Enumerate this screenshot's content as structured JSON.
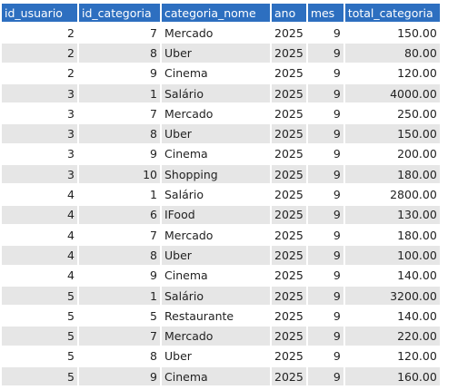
{
  "table": {
    "columns": [
      "id_usuario",
      "id_categoria",
      "categoria_nome",
      "ano",
      "mes",
      "total_categoria"
    ],
    "rows": [
      [
        "2",
        "7",
        "Mercado",
        "2025",
        "9",
        "150.00"
      ],
      [
        "2",
        "8",
        "Uber",
        "2025",
        "9",
        "80.00"
      ],
      [
        "2",
        "9",
        "Cinema",
        "2025",
        "9",
        "120.00"
      ],
      [
        "3",
        "1",
        "Salário",
        "2025",
        "9",
        "4000.00"
      ],
      [
        "3",
        "7",
        "Mercado",
        "2025",
        "9",
        "250.00"
      ],
      [
        "3",
        "8",
        "Uber",
        "2025",
        "9",
        "150.00"
      ],
      [
        "3",
        "9",
        "Cinema",
        "2025",
        "9",
        "200.00"
      ],
      [
        "3",
        "10",
        "Shopping",
        "2025",
        "9",
        "180.00"
      ],
      [
        "4",
        "1",
        "Salário",
        "2025",
        "9",
        "2800.00"
      ],
      [
        "4",
        "6",
        "IFood",
        "2025",
        "9",
        "130.00"
      ],
      [
        "4",
        "7",
        "Mercado",
        "2025",
        "9",
        "180.00"
      ],
      [
        "4",
        "8",
        "Uber",
        "2025",
        "9",
        "100.00"
      ],
      [
        "4",
        "9",
        "Cinema",
        "2025",
        "9",
        "140.00"
      ],
      [
        "5",
        "1",
        "Salário",
        "2025",
        "9",
        "3200.00"
      ],
      [
        "5",
        "5",
        "Restaurante",
        "2025",
        "9",
        "140.00"
      ],
      [
        "5",
        "7",
        "Mercado",
        "2025",
        "9",
        "220.00"
      ],
      [
        "5",
        "8",
        "Uber",
        "2025",
        "9",
        "120.00"
      ],
      [
        "5",
        "9",
        "Cinema",
        "2025",
        "9",
        "160.00"
      ]
    ]
  },
  "colors": {
    "header_bg": "#2d6fc0",
    "header_text": "#ffffff",
    "row_alt_bg": "#e6e6e6"
  }
}
